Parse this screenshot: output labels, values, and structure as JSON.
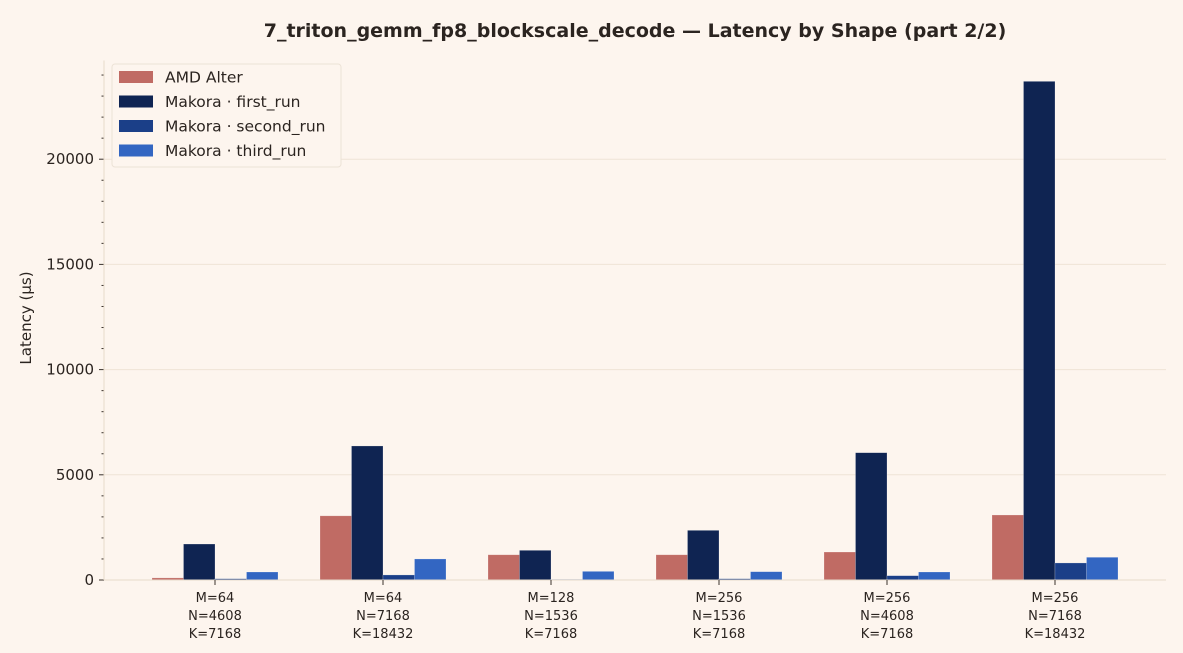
{
  "chart_data": {
    "type": "bar",
    "title": "7_triton_gemm_fp8_blockscale_decode  —  Latency by Shape  (part 2/2)",
    "xlabel": "",
    "ylabel": "Latency (µs)",
    "ylim": [
      0,
      24500
    ],
    "yticks": [
      0,
      5000,
      10000,
      15000,
      20000
    ],
    "ytick_labels": [
      "0",
      "5000",
      "10000",
      "15000",
      "20000"
    ],
    "minor_ytick_step": 1000,
    "grid": true,
    "legend_position": "top-left",
    "categories": [
      [
        "M=64",
        "N=4608",
        "K=7168"
      ],
      [
        "M=64",
        "N=7168",
        "K=18432"
      ],
      [
        "M=128",
        "N=1536",
        "K=7168"
      ],
      [
        "M=256",
        "N=1536",
        "K=7168"
      ],
      [
        "M=256",
        "N=4608",
        "K=7168"
      ],
      [
        "M=256",
        "N=7168",
        "K=18432"
      ]
    ],
    "series": [
      {
        "name": "AMD Alter",
        "color": "#c06b64",
        "values": [
          100,
          3050,
          1200,
          1200,
          1330,
          3090
        ]
      },
      {
        "name": "Makora · first_run",
        "color": "#0f2452",
        "values": [
          1710,
          6370,
          1410,
          2360,
          6050,
          23700
        ]
      },
      {
        "name": "Makora · second_run",
        "color": "#1b3f88",
        "values": [
          60,
          240,
          30,
          60,
          205,
          810
        ]
      },
      {
        "name": "Makora · third_run",
        "color": "#3366c2",
        "values": [
          380,
          1000,
          410,
          395,
          380,
          1080
        ]
      }
    ]
  }
}
